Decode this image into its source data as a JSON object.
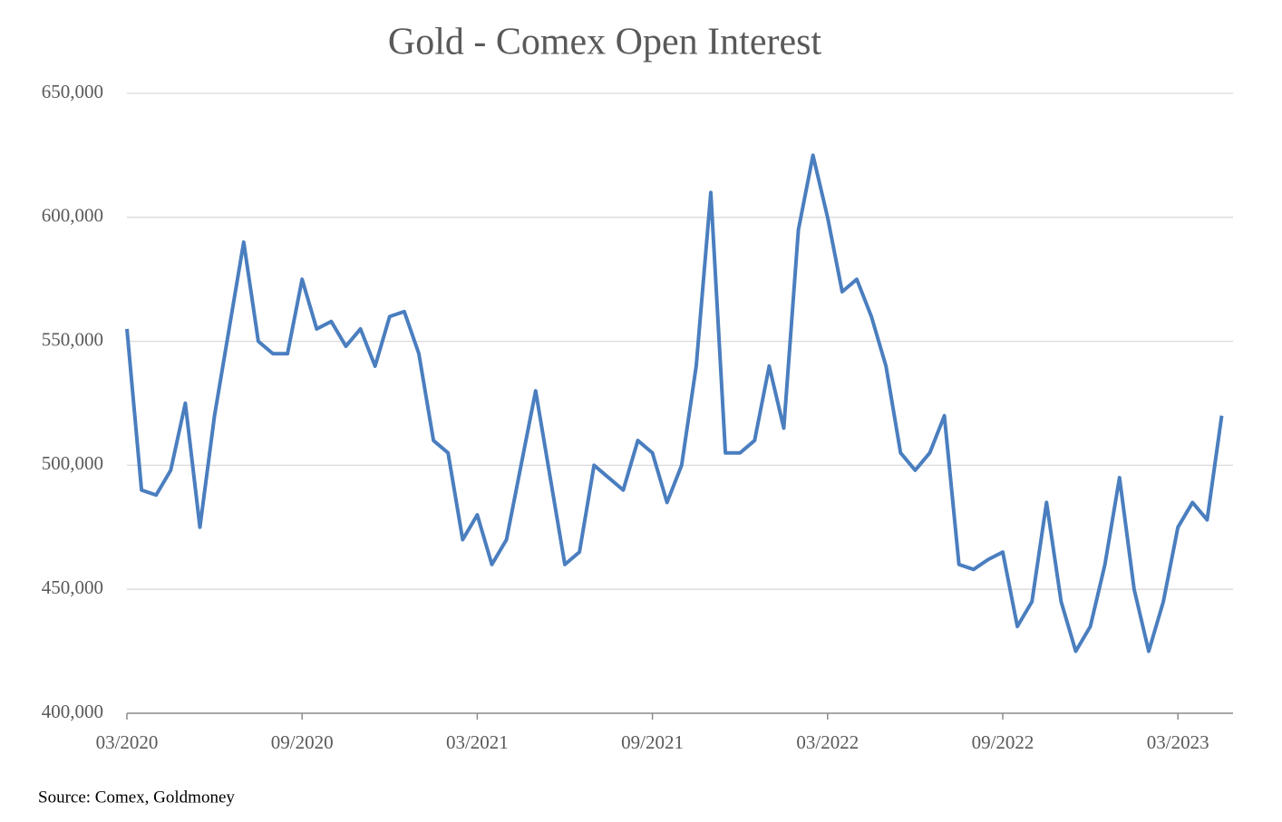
{
  "chart_data": {
    "type": "line",
    "title": "Gold - Comex Open Interest",
    "source": "Source: Comex, Goldmoney",
    "categories": [
      "03/2020",
      null,
      null,
      null,
      null,
      null,
      null,
      null,
      null,
      null,
      null,
      null,
      "09/2020",
      null,
      null,
      null,
      null,
      null,
      null,
      null,
      null,
      null,
      null,
      null,
      "03/2021",
      null,
      null,
      null,
      null,
      null,
      null,
      null,
      null,
      null,
      null,
      null,
      "09/2021",
      null,
      null,
      null,
      null,
      null,
      null,
      null,
      null,
      null,
      null,
      null,
      "03/2022",
      null,
      null,
      null,
      null,
      null,
      null,
      null,
      null,
      null,
      null,
      null,
      "09/2022",
      null,
      null,
      null,
      null,
      null,
      null,
      null,
      null,
      null,
      null,
      null,
      "03/2023",
      null,
      null,
      null
    ],
    "series": [
      {
        "name": "Open Interest",
        "color": "#4a7ebf",
        "values": [
          555000,
          490000,
          488000,
          498000,
          525000,
          475000,
          520000,
          555000,
          590000,
          550000,
          545000,
          545000,
          575000,
          555000,
          558000,
          548000,
          555000,
          540000,
          560000,
          562000,
          545000,
          510000,
          505000,
          470000,
          480000,
          460000,
          470000,
          500000,
          530000,
          495000,
          460000,
          465000,
          500000,
          495000,
          490000,
          510000,
          505000,
          485000,
          500000,
          540000,
          610000,
          505000,
          505000,
          510000,
          540000,
          515000,
          595000,
          625000,
          600000,
          570000,
          575000,
          560000,
          540000,
          505000,
          498000,
          505000,
          520000,
          460000,
          458000,
          462000,
          465000,
          435000,
          445000,
          485000,
          445000,
          425000,
          435000,
          460000,
          495000,
          450000,
          425000,
          445000,
          475000,
          485000,
          478000,
          520000
        ]
      }
    ],
    "ylim": [
      400000,
      650000
    ],
    "yticks": [
      {
        "value": 400000,
        "label": "400,000"
      },
      {
        "value": 450000,
        "label": "450,000"
      },
      {
        "value": 500000,
        "label": "500,000"
      },
      {
        "value": 550000,
        "label": "550,000"
      },
      {
        "value": 600000,
        "label": "600,000"
      },
      {
        "value": 650000,
        "label": "650,000"
      }
    ],
    "grid": true
  }
}
